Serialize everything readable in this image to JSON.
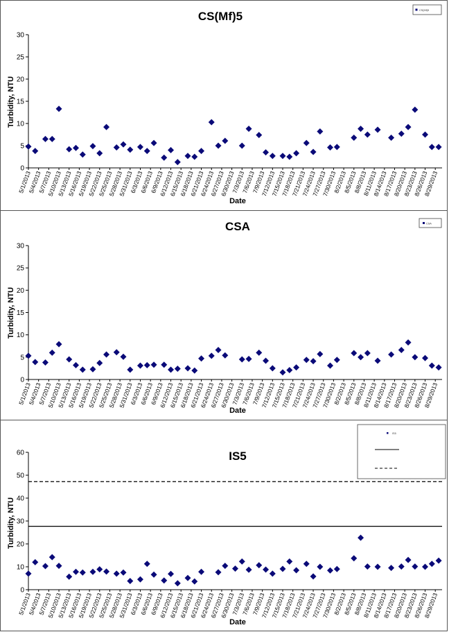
{
  "chart_data": [
    {
      "type": "scatter",
      "title": "CS(Mf)5",
      "xlabel": "Date",
      "ylabel": "Turbidity, NTU",
      "ylim": [
        0,
        30
      ],
      "yticks": [
        0,
        5,
        10,
        15,
        20,
        25,
        30
      ],
      "xlim": [
        "5/1/2013",
        "8/31/2013"
      ],
      "tick_labels": [
        "5/1/2013",
        "5/4/2013",
        "5/7/2013",
        "5/10/2013",
        "5/13/2013",
        "5/16/2013",
        "5/19/2013",
        "5/22/2013",
        "5/25/2013",
        "5/28/2013",
        "5/31/2013",
        "6/3/2013",
        "6/6/2013",
        "6/9/2013",
        "6/12/2013",
        "6/15/2013",
        "6/18/2013",
        "6/21/2013",
        "6/24/2013",
        "6/27/2013",
        "6/30/2013",
        "7/3/2013",
        "7/6/2013",
        "7/9/2013",
        "7/12/2013",
        "7/15/2013",
        "7/18/2013",
        "7/21/2013",
        "7/24/2013",
        "7/27/2013",
        "7/30/2013",
        "8/2/2013",
        "8/5/2013",
        "8/8/2013",
        "8/11/2013",
        "8/14/2013",
        "8/17/2013",
        "8/20/2013",
        "8/23/2013",
        "8/26/2013",
        "8/29/2013"
      ],
      "legend": {
        "position": "top-right",
        "entries": [
          "CS(Mf)5"
        ]
      },
      "series": [
        {
          "name": "CS(Mf)5",
          "marker": "diamond",
          "color": "#0a0a78",
          "points": [
            [
              "5/1/2013",
              4.8
            ],
            [
              "5/3/2013",
              3.8
            ],
            [
              "5/6/2013",
              6.5
            ],
            [
              "5/8/2013",
              6.5
            ],
            [
              "5/10/2013",
              13.3
            ],
            [
              "5/13/2013",
              4.2
            ],
            [
              "5/15/2013",
              4.5
            ],
            [
              "5/17/2013",
              3.0
            ],
            [
              "5/20/2013",
              4.9
            ],
            [
              "5/22/2013",
              3.3
            ],
            [
              "5/24/2013",
              9.2
            ],
            [
              "5/27/2013",
              4.6
            ],
            [
              "5/29/2013",
              5.3
            ],
            [
              "5/31/2013",
              4.1
            ],
            [
              "6/3/2013",
              4.7
            ],
            [
              "6/5/2013",
              3.8
            ],
            [
              "6/7/2013",
              5.6
            ],
            [
              "6/10/2013",
              2.3
            ],
            [
              "6/12/2013",
              4.0
            ],
            [
              "6/14/2013",
              1.3
            ],
            [
              "6/17/2013",
              2.7
            ],
            [
              "6/19/2013",
              2.5
            ],
            [
              "6/21/2013",
              3.8
            ],
            [
              "6/24/2013",
              10.3
            ],
            [
              "6/26/2013",
              5.0
            ],
            [
              "6/28/2013",
              6.1
            ],
            [
              "7/3/2013",
              5.0
            ],
            [
              "7/5/2013",
              8.8
            ],
            [
              "7/8/2013",
              7.4
            ],
            [
              "7/10/2013",
              3.5
            ],
            [
              "7/12/2013",
              2.7
            ],
            [
              "7/15/2013",
              2.7
            ],
            [
              "7/17/2013",
              2.5
            ],
            [
              "7/19/2013",
              3.3
            ],
            [
              "7/22/2013",
              5.6
            ],
            [
              "7/24/2013",
              3.6
            ],
            [
              "7/26/2013",
              8.2
            ],
            [
              "7/29/2013",
              4.6
            ],
            [
              "7/31/2013",
              4.7
            ],
            [
              "8/5/2013",
              6.8
            ],
            [
              "8/7/2013",
              8.8
            ],
            [
              "8/9/2013",
              7.5
            ],
            [
              "8/12/2013",
              8.6
            ],
            [
              "8/16/2013",
              6.8
            ],
            [
              "8/19/2013",
              7.7
            ],
            [
              "8/21/2013",
              9.2
            ],
            [
              "8/23/2013",
              13.1
            ],
            [
              "8/26/2013",
              7.5
            ],
            [
              "8/28/2013",
              4.7
            ],
            [
              "8/30/2013",
              4.7
            ]
          ]
        }
      ]
    },
    {
      "type": "scatter",
      "title": "CSA",
      "xlabel": "Date",
      "ylabel": "Turbidity, NTU",
      "ylim": [
        0,
        30
      ],
      "yticks": [
        0,
        5,
        10,
        15,
        20,
        25,
        30
      ],
      "xlim": [
        "5/1/2013",
        "8/31/2013"
      ],
      "tick_labels": [
        "5/1/2013",
        "5/4/2013",
        "5/7/2013",
        "5/10/2013",
        "5/13/2013",
        "5/16/2013",
        "5/19/2013",
        "5/22/2013",
        "5/25/2013",
        "5/28/2013",
        "5/31/2013",
        "6/3/2013",
        "6/6/2013",
        "6/9/2013",
        "6/12/2013",
        "6/15/2013",
        "6/18/2013",
        "6/21/2013",
        "6/24/2013",
        "6/27/2013",
        "6/30/2013",
        "7/3/2013",
        "7/6/2013",
        "7/9/2013",
        "7/12/2013",
        "7/15/2013",
        "7/18/2013",
        "7/21/2013",
        "7/24/2013",
        "7/27/2013",
        "7/30/2013",
        "8/2/2013",
        "8/5/2013",
        "8/8/2013",
        "8/11/2013",
        "8/14/2013",
        "8/17/2013",
        "8/20/2013",
        "8/23/2013",
        "8/26/2013",
        "8/29/2013"
      ],
      "legend": {
        "position": "top-right",
        "entries": [
          "CSA"
        ]
      },
      "series": [
        {
          "name": "CSA",
          "marker": "diamond",
          "color": "#0a0a78",
          "points": [
            [
              "5/1/2013",
              5.3
            ],
            [
              "5/3/2013",
              3.9
            ],
            [
              "5/6/2013",
              3.8
            ],
            [
              "5/8/2013",
              6.0
            ],
            [
              "5/10/2013",
              7.9
            ],
            [
              "5/13/2013",
              4.5
            ],
            [
              "5/15/2013",
              3.2
            ],
            [
              "5/17/2013",
              2.2
            ],
            [
              "5/20/2013",
              2.3
            ],
            [
              "5/22/2013",
              3.7
            ],
            [
              "5/24/2013",
              5.6
            ],
            [
              "5/27/2013",
              6.1
            ],
            [
              "5/29/2013",
              5.1
            ],
            [
              "5/31/2013",
              2.2
            ],
            [
              "6/3/2013",
              3.1
            ],
            [
              "6/5/2013",
              3.2
            ],
            [
              "6/7/2013",
              3.3
            ],
            [
              "6/10/2013",
              3.3
            ],
            [
              "6/12/2013",
              2.2
            ],
            [
              "6/14/2013",
              2.4
            ],
            [
              "6/17/2013",
              2.5
            ],
            [
              "6/19/2013",
              2.0
            ],
            [
              "6/21/2013",
              4.7
            ],
            [
              "6/24/2013",
              5.3
            ],
            [
              "6/26/2013",
              6.6
            ],
            [
              "6/28/2013",
              5.4
            ],
            [
              "7/3/2013",
              4.5
            ],
            [
              "7/5/2013",
              4.6
            ],
            [
              "7/8/2013",
              6.0
            ],
            [
              "7/10/2013",
              4.2
            ],
            [
              "7/12/2013",
              2.5
            ],
            [
              "7/15/2013",
              1.6
            ],
            [
              "7/17/2013",
              2.1
            ],
            [
              "7/19/2013",
              2.7
            ],
            [
              "7/22/2013",
              4.4
            ],
            [
              "7/24/2013",
              4.1
            ],
            [
              "7/26/2013",
              5.7
            ],
            [
              "7/29/2013",
              3.1
            ],
            [
              "7/31/2013",
              4.4
            ],
            [
              "8/5/2013",
              5.9
            ],
            [
              "8/7/2013",
              5.0
            ],
            [
              "8/9/2013",
              5.9
            ],
            [
              "8/12/2013",
              4.2
            ],
            [
              "8/16/2013",
              5.6
            ],
            [
              "8/19/2013",
              6.6
            ],
            [
              "8/21/2013",
              8.3
            ],
            [
              "8/23/2013",
              5.0
            ],
            [
              "8/26/2013",
              4.8
            ],
            [
              "8/28/2013",
              3.1
            ],
            [
              "8/30/2013",
              2.7
            ]
          ]
        }
      ]
    },
    {
      "type": "scatter",
      "title": "IS5",
      "xlabel": "Date",
      "ylabel": "Turbidity, NTU",
      "ylim": [
        0,
        60
      ],
      "yticks": [
        0,
        10,
        20,
        30,
        40,
        50,
        60
      ],
      "xlim": [
        "5/1/2013",
        "8/31/2013"
      ],
      "tick_labels": [
        "5/1/2013",
        "5/4/2013",
        "5/7/2013",
        "5/10/2013",
        "5/13/2013",
        "5/16/2013",
        "5/19/2013",
        "5/22/2013",
        "5/25/2013",
        "5/28/2013",
        "5/31/2013",
        "6/3/2013",
        "6/6/2013",
        "6/9/2013",
        "6/12/2013",
        "6/15/2013",
        "6/18/2013",
        "6/21/2013",
        "6/24/2013",
        "6/27/2013",
        "6/30/2013",
        "7/3/2013",
        "7/6/2013",
        "7/9/2013",
        "7/12/2013",
        "7/15/2013",
        "7/18/2013",
        "7/21/2013",
        "7/24/2013",
        "7/27/2013",
        "7/30/2013",
        "8/2/2013",
        "8/5/2013",
        "8/8/2013",
        "8/11/2013",
        "8/14/2013",
        "8/17/2013",
        "8/20/2013",
        "8/23/2013",
        "8/26/2013",
        "8/29/2013"
      ],
      "legend": {
        "position": "top-right",
        "entries": [
          "IS5"
        ]
      },
      "reference_lines": [
        {
          "value": 27.7,
          "style": "solid",
          "color": "#000000"
        },
        {
          "value": 47.2,
          "style": "dashed",
          "color": "#000000"
        }
      ],
      "series": [
        {
          "name": "IS5",
          "marker": "diamond",
          "color": "#0a0a78",
          "points": [
            [
              "5/1/2013",
              7.0
            ],
            [
              "5/3/2013",
              12.0
            ],
            [
              "5/6/2013",
              10.3
            ],
            [
              "5/8/2013",
              14.2
            ],
            [
              "5/10/2013",
              10.4
            ],
            [
              "5/13/2013",
              5.7
            ],
            [
              "5/15/2013",
              7.8
            ],
            [
              "5/17/2013",
              7.5
            ],
            [
              "5/20/2013",
              7.8
            ],
            [
              "5/22/2013",
              8.9
            ],
            [
              "5/24/2013",
              7.9
            ],
            [
              "5/27/2013",
              7.0
            ],
            [
              "5/29/2013",
              7.5
            ],
            [
              "5/31/2013",
              3.8
            ],
            [
              "6/3/2013",
              4.5
            ],
            [
              "6/5/2013",
              11.3
            ],
            [
              "6/7/2013",
              6.6
            ],
            [
              "6/10/2013",
              4.0
            ],
            [
              "6/12/2013",
              6.9
            ],
            [
              "6/14/2013",
              2.8
            ],
            [
              "6/17/2013",
              5.1
            ],
            [
              "6/19/2013",
              3.6
            ],
            [
              "6/21/2013",
              7.8
            ],
            [
              "6/26/2013",
              7.6
            ],
            [
              "6/28/2013",
              10.4
            ],
            [
              "7/1/2013",
              9.2
            ],
            [
              "7/3/2013",
              12.3
            ],
            [
              "7/5/2013",
              8.7
            ],
            [
              "7/8/2013",
              10.7
            ],
            [
              "7/10/2013",
              8.8
            ],
            [
              "7/12/2013",
              7.0
            ],
            [
              "7/15/2013",
              9.1
            ],
            [
              "7/17/2013",
              12.3
            ],
            [
              "7/19/2013",
              8.5
            ],
            [
              "7/22/2013",
              11.3
            ],
            [
              "7/24/2013",
              5.8
            ],
            [
              "7/26/2013",
              10.0
            ],
            [
              "7/29/2013",
              8.4
            ],
            [
              "7/31/2013",
              9.0
            ],
            [
              "8/5/2013",
              13.7
            ],
            [
              "8/7/2013",
              22.7
            ],
            [
              "8/9/2013",
              10.1
            ],
            [
              "8/12/2013",
              10.0
            ],
            [
              "8/16/2013",
              9.5
            ],
            [
              "8/19/2013",
              10.1
            ],
            [
              "8/21/2013",
              13.0
            ],
            [
              "8/23/2013",
              10.1
            ],
            [
              "8/26/2013",
              10.0
            ],
            [
              "8/28/2013",
              11.3
            ],
            [
              "8/30/2013",
              12.7
            ]
          ]
        }
      ]
    }
  ]
}
